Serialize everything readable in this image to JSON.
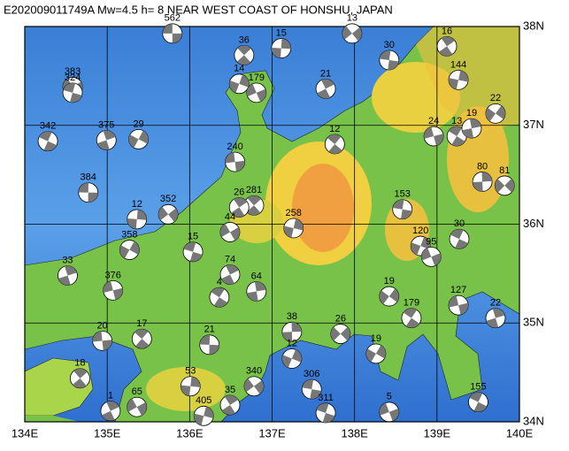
{
  "map": {
    "title": "E202009011749A Mw=4.5 h=  8 NEAR WEST COAST OF HONSHU, JAPAN",
    "xlim": [
      134,
      140
    ],
    "ylim": [
      34,
      38
    ],
    "xticks": [
      {
        "value": 134,
        "label": "134E"
      },
      {
        "value": 135,
        "label": "135E"
      },
      {
        "value": 136,
        "label": "136E"
      },
      {
        "value": 137,
        "label": "137E"
      },
      {
        "value": 138,
        "label": "138E"
      },
      {
        "value": 139,
        "label": "139E"
      },
      {
        "value": 140,
        "label": "140E"
      }
    ],
    "yticks": [
      {
        "value": 34,
        "label": "34N"
      },
      {
        "value": 35,
        "label": "35N"
      },
      {
        "value": 36,
        "label": "36N"
      },
      {
        "value": 37,
        "label": "37N"
      },
      {
        "value": 38,
        "label": "38N"
      }
    ],
    "grid": true,
    "events": [
      {
        "label": "562",
        "lon": 135.79,
        "lat": 37.93
      },
      {
        "label": "36",
        "lon": 136.66,
        "lat": 37.71
      },
      {
        "label": "15",
        "lon": 137.11,
        "lat": 37.78
      },
      {
        "label": "13",
        "lon": 137.97,
        "lat": 37.93
      },
      {
        "label": "30",
        "lon": 138.42,
        "lat": 37.66
      },
      {
        "label": "16",
        "lon": 139.12,
        "lat": 37.8
      },
      {
        "label": "144",
        "lon": 139.26,
        "lat": 37.46
      },
      {
        "label": "383",
        "lon": 134.58,
        "lat": 37.39
      },
      {
        "label": "324",
        "lon": 134.58,
        "lat": 37.33
      },
      {
        "label": "21",
        "lon": 137.65,
        "lat": 37.37
      },
      {
        "label": "14",
        "lon": 136.6,
        "lat": 37.42
      },
      {
        "label": "179",
        "lon": 136.81,
        "lat": 37.33
      },
      {
        "label": "342",
        "lon": 134.28,
        "lat": 36.84
      },
      {
        "label": "375",
        "lon": 134.99,
        "lat": 36.85
      },
      {
        "label": "29",
        "lon": 135.38,
        "lat": 36.86
      },
      {
        "label": "24",
        "lon": 138.96,
        "lat": 36.89
      },
      {
        "label": "13",
        "lon": 139.24,
        "lat": 36.89
      },
      {
        "label": "19",
        "lon": 139.42,
        "lat": 36.97
      },
      {
        "label": "22",
        "lon": 139.71,
        "lat": 37.12
      },
      {
        "label": "240",
        "lon": 136.55,
        "lat": 36.63
      },
      {
        "label": "12",
        "lon": 137.76,
        "lat": 36.81
      },
      {
        "label": "80",
        "lon": 139.55,
        "lat": 36.43
      },
      {
        "label": "81",
        "lon": 139.82,
        "lat": 36.39
      },
      {
        "label": "384",
        "lon": 134.77,
        "lat": 36.32
      },
      {
        "label": "281",
        "lon": 136.78,
        "lat": 36.19
      },
      {
        "label": "12",
        "lon": 135.36,
        "lat": 36.05
      },
      {
        "label": "352",
        "lon": 135.74,
        "lat": 36.1
      },
      {
        "label": "153",
        "lon": 138.58,
        "lat": 36.15
      },
      {
        "label": "26",
        "lon": 136.6,
        "lat": 36.17
      },
      {
        "label": "258",
        "lon": 137.26,
        "lat": 35.96
      },
      {
        "label": "44",
        "lon": 136.49,
        "lat": 35.92
      },
      {
        "label": "15",
        "lon": 136.04,
        "lat": 35.72
      },
      {
        "label": "74",
        "lon": 136.49,
        "lat": 35.49
      },
      {
        "label": "120",
        "lon": 138.8,
        "lat": 35.78
      },
      {
        "label": "95",
        "lon": 138.93,
        "lat": 35.67
      },
      {
        "label": "30",
        "lon": 139.27,
        "lat": 35.85
      },
      {
        "label": "33",
        "lon": 134.52,
        "lat": 35.48
      },
      {
        "label": "358",
        "lon": 135.27,
        "lat": 35.74
      },
      {
        "label": "376",
        "lon": 135.07,
        "lat": 35.33
      },
      {
        "label": "4",
        "lon": 136.36,
        "lat": 35.26
      },
      {
        "label": "64",
        "lon": 136.81,
        "lat": 35.32
      },
      {
        "label": "19",
        "lon": 138.42,
        "lat": 35.27
      },
      {
        "label": "20",
        "lon": 134.94,
        "lat": 34.82
      },
      {
        "label": "17",
        "lon": 135.42,
        "lat": 34.84
      },
      {
        "label": "38",
        "lon": 137.24,
        "lat": 34.91
      },
      {
        "label": "26",
        "lon": 137.83,
        "lat": 34.89
      },
      {
        "label": "21",
        "lon": 136.24,
        "lat": 34.78
      },
      {
        "label": "18",
        "lon": 134.67,
        "lat": 34.44
      },
      {
        "label": "53",
        "lon": 136.01,
        "lat": 34.36
      },
      {
        "label": "340",
        "lon": 136.78,
        "lat": 34.36
      },
      {
        "label": "306",
        "lon": 137.48,
        "lat": 34.33
      },
      {
        "label": "35",
        "lon": 136.49,
        "lat": 34.17
      },
      {
        "label": "405",
        "lon": 136.17,
        "lat": 34.06
      },
      {
        "label": "65",
        "lon": 135.36,
        "lat": 34.15
      },
      {
        "label": "311",
        "lon": 137.65,
        "lat": 34.09
      },
      {
        "label": "1",
        "lon": 135.04,
        "lat": 34.11
      },
      {
        "label": "12",
        "lon": 137.24,
        "lat": 34.64
      },
      {
        "label": "5",
        "lon": 138.42,
        "lat": 34.1
      },
      {
        "label": "155",
        "lon": 139.5,
        "lat": 34.2
      },
      {
        "label": "22",
        "lon": 139.71,
        "lat": 35.05
      },
      {
        "label": "19",
        "lon": 138.26,
        "lat": 34.69
      },
      {
        "label": "127",
        "lon": 139.26,
        "lat": 35.18
      },
      {
        "label": "179",
        "lon": 138.69,
        "lat": 35.05
      }
    ]
  }
}
